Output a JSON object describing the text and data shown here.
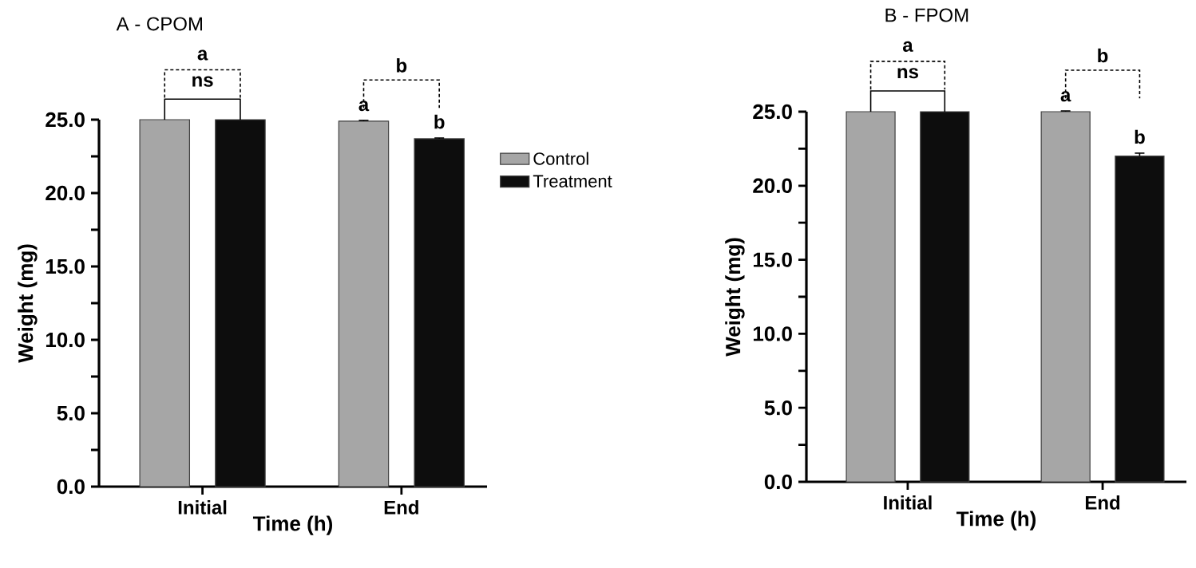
{
  "chart_data": [
    {
      "type": "bar",
      "title": "A - CPOM",
      "xlabel": "Time (h)",
      "ylabel": "Weight (mg)",
      "categories": [
        "Initial",
        "End"
      ],
      "series": [
        {
          "name": "Control",
          "color": "#a6a6a6",
          "values": [
            25.0,
            24.9
          ],
          "errors": [
            null,
            0.05
          ]
        },
        {
          "name": "Treatment",
          "color": "#0d0d0d",
          "values": [
            25.0,
            23.7
          ],
          "errors": [
            null,
            0.05
          ]
        }
      ],
      "ylim": [
        0,
        25
      ],
      "yticks": [
        {
          "value": 0,
          "label": "0.0"
        },
        {
          "value": 2.5,
          "label": null
        },
        {
          "value": 5,
          "label": "5.0"
        },
        {
          "value": 7.5,
          "label": null
        },
        {
          "value": 10,
          "label": "10.0"
        },
        {
          "value": 12.5,
          "label": null
        },
        {
          "value": 15,
          "label": "15.0"
        },
        {
          "value": 17.5,
          "label": null
        },
        {
          "value": 20,
          "label": "20.0"
        },
        {
          "value": 22.5,
          "label": null
        },
        {
          "value": 25,
          "label": "25.0"
        }
      ],
      "legend": "right",
      "annotations": [
        "a",
        "ns",
        "a",
        "b",
        "b"
      ]
    },
    {
      "type": "bar",
      "title": "B - FPOM",
      "xlabel": "Time (h)",
      "ylabel": "Weight (mg)",
      "categories": [
        "Initial",
        "End"
      ],
      "series": [
        {
          "color": "#a6a6a6",
          "values": [
            25.0,
            25.0
          ],
          "errors": [
            null,
            0.05
          ]
        },
        {
          "color": "#0d0d0d",
          "values": [
            25.0,
            22.0
          ],
          "errors": [
            null,
            0.2
          ]
        }
      ],
      "ylim": [
        0,
        25
      ],
      "yticks": [
        {
          "value": 0,
          "label": "0.0"
        },
        {
          "value": 2.5,
          "label": null
        },
        {
          "value": 5,
          "label": "5.0"
        },
        {
          "value": 7.5,
          "label": null
        },
        {
          "value": 10,
          "label": "10.0"
        },
        {
          "value": 12.5,
          "label": null
        },
        {
          "value": 15,
          "label": "15.0"
        },
        {
          "value": 17.5,
          "label": null
        },
        {
          "value": 20,
          "label": "20.0"
        },
        {
          "value": 22.5,
          "label": null
        },
        {
          "value": 25,
          "label": "25.0"
        }
      ],
      "annotations": [
        "a",
        "ns",
        "a",
        "b",
        "b"
      ]
    }
  ]
}
